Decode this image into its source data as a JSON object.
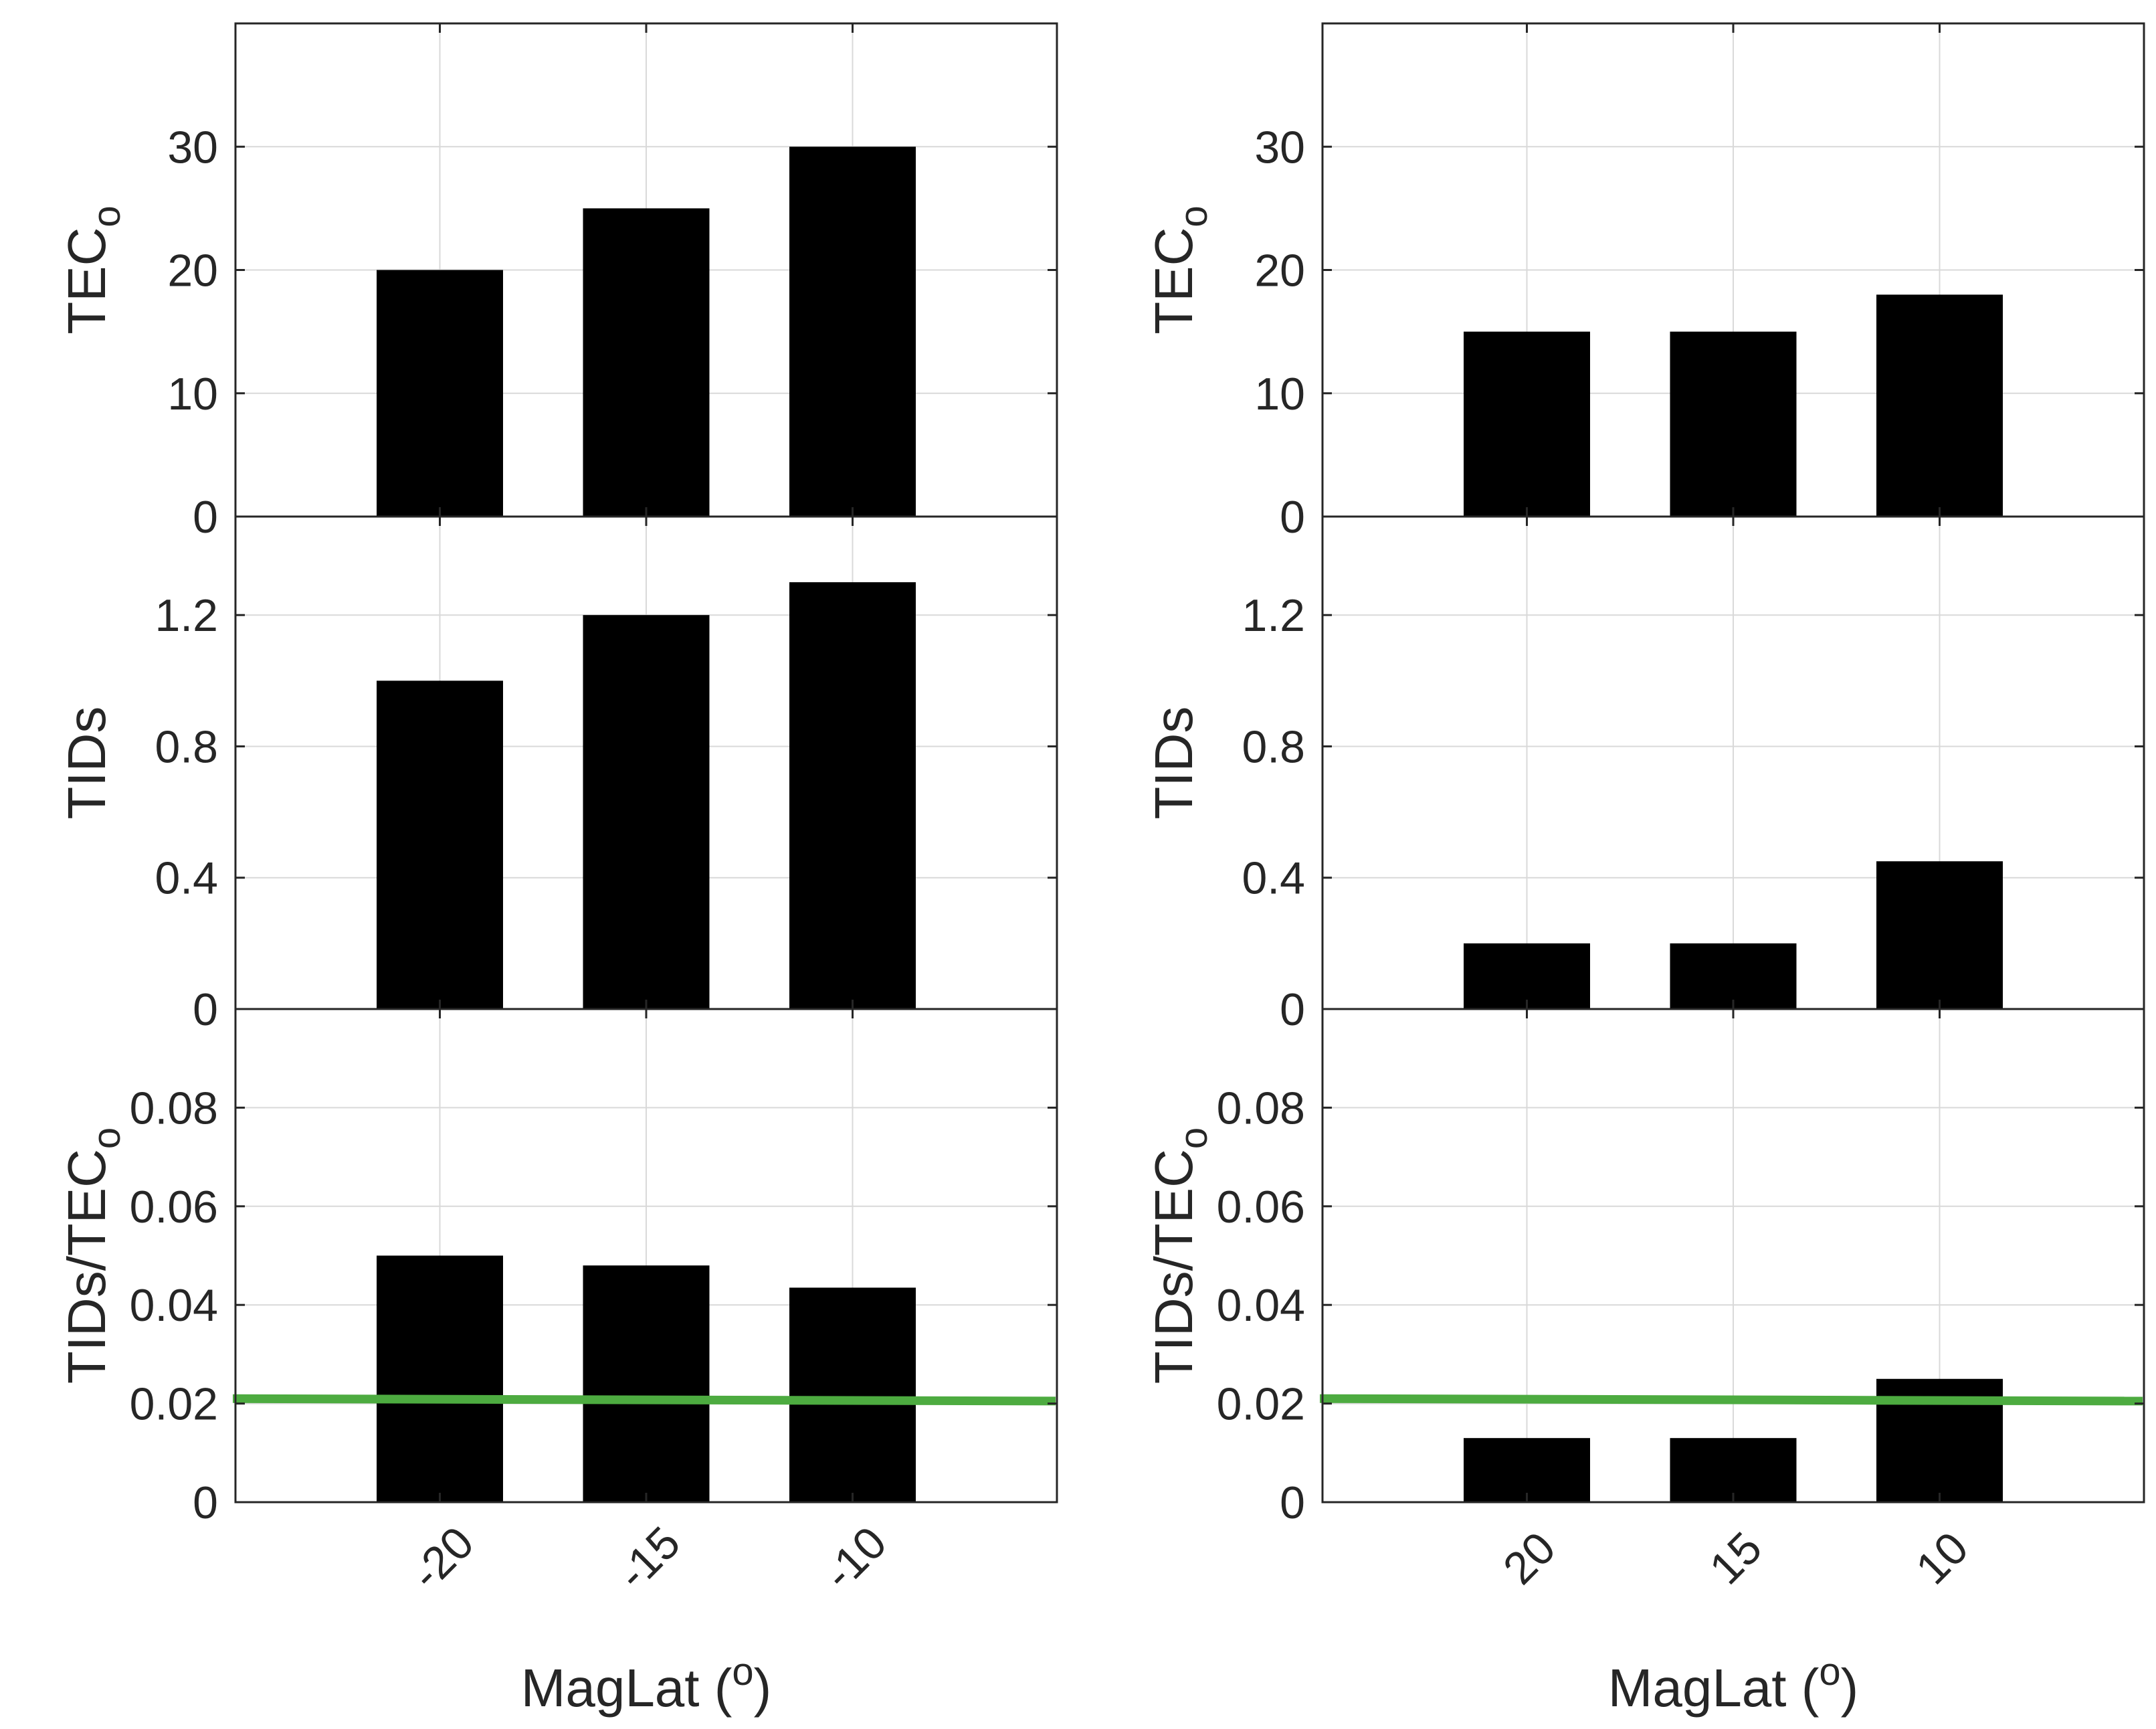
{
  "figure": {
    "colors": {
      "bar": "#000000",
      "grid": "#d9d9d9",
      "axis": "#262626",
      "threshold": "#4dab40",
      "background": "#ffffff"
    }
  },
  "chart_data": [
    {
      "type": "bar",
      "panel": "left-top",
      "categories": [
        "-20",
        "-15",
        "-10"
      ],
      "values": [
        20,
        25,
        30
      ],
      "ylabel": "TEC",
      "ylabel_sub": "o",
      "ylim": [
        0,
        40
      ],
      "yticks": [
        0,
        10,
        20,
        30
      ],
      "ytick_labels": [
        "0",
        "10",
        "20",
        "30"
      ],
      "grid": true
    },
    {
      "type": "bar",
      "panel": "left-middle",
      "categories": [
        "-20",
        "-15",
        "-10"
      ],
      "values": [
        1.0,
        1.2,
        1.3
      ],
      "ylabel": "TIDs",
      "ylim": [
        0,
        1.5
      ],
      "yticks": [
        0,
        0.4,
        0.8,
        1.2
      ],
      "ytick_labels": [
        "0",
        "0.4",
        "0.8",
        "1.2"
      ],
      "grid": true
    },
    {
      "type": "bar",
      "panel": "left-bottom",
      "categories": [
        "-20",
        "-15",
        "-10"
      ],
      "values": [
        0.05,
        0.048,
        0.0435
      ],
      "ylabel": "TIDs/TEC",
      "ylabel_sub": "o",
      "ylim": [
        0,
        0.1
      ],
      "yticks": [
        0,
        0.02,
        0.04,
        0.06,
        0.08
      ],
      "ytick_labels": [
        "0",
        "0.02",
        "0.04",
        "0.06",
        "0.08"
      ],
      "threshold": [
        0.021,
        0.0205
      ],
      "xlabel": "MagLat (",
      "xlabel_sup": "o",
      "xlabel_end": ")",
      "grid": true
    },
    {
      "type": "bar",
      "panel": "right-top",
      "categories": [
        "20",
        "15",
        "10"
      ],
      "values": [
        15,
        15,
        18
      ],
      "ylabel": "TEC",
      "ylabel_sub": "o",
      "ylim": [
        0,
        40
      ],
      "yticks": [
        0,
        10,
        20,
        30
      ],
      "ytick_labels": [
        "0",
        "10",
        "20",
        "30"
      ],
      "grid": true
    },
    {
      "type": "bar",
      "panel": "right-middle",
      "categories": [
        "20",
        "15",
        "10"
      ],
      "values": [
        0.2,
        0.2,
        0.45
      ],
      "ylabel": "TIDs",
      "ylim": [
        0,
        1.5
      ],
      "yticks": [
        0,
        0.4,
        0.8,
        1.2
      ],
      "ytick_labels": [
        "0",
        "0.4",
        "0.8",
        "1.2"
      ],
      "grid": true
    },
    {
      "type": "bar",
      "panel": "right-bottom",
      "categories": [
        "20",
        "15",
        "10"
      ],
      "values": [
        0.013,
        0.013,
        0.025
      ],
      "ylabel": "TIDs/TEC",
      "ylabel_sub": "o",
      "ylim": [
        0,
        0.1
      ],
      "yticks": [
        0,
        0.02,
        0.04,
        0.06,
        0.08
      ],
      "ytick_labels": [
        "0",
        "0.02",
        "0.04",
        "0.06",
        "0.08"
      ],
      "threshold": [
        0.021,
        0.0205
      ],
      "xlabel": "MagLat (",
      "xlabel_sup": "o",
      "xlabel_end": ")",
      "grid": true
    }
  ]
}
